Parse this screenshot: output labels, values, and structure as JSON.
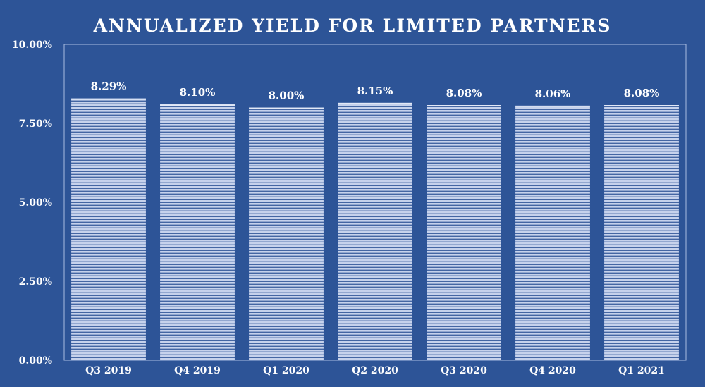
{
  "chart_data": {
    "type": "bar",
    "title": "ANNUALIZED YIELD FOR LIMITED PARTNERS",
    "categories": [
      "Q3 2019",
      "Q4 2019",
      "Q1 2020",
      "Q2 2020",
      "Q3 2020",
      "Q4 2020",
      "Q1 2021"
    ],
    "values": [
      8.29,
      8.1,
      8.0,
      8.15,
      8.08,
      8.06,
      8.08
    ],
    "data_labels": [
      "8.29%",
      "8.10%",
      "8.00%",
      "8.15%",
      "8.08%",
      "8.06%",
      "8.08%"
    ],
    "ylim": [
      0,
      10
    ],
    "yticks": [
      0,
      2.5,
      5,
      7.5,
      10
    ],
    "ytick_labels": [
      "0.00%",
      "2.50%",
      "5.00%",
      "7.50%",
      "10.00%"
    ],
    "xlabel": "",
    "ylabel": "",
    "grid": false,
    "legend": "none",
    "colors": {
      "background": "#2d5497",
      "bar_fill": "#c6d2ec",
      "bar_stripe": "#2d5497",
      "text": "#ffffff",
      "frame": "#a9bde0"
    }
  }
}
